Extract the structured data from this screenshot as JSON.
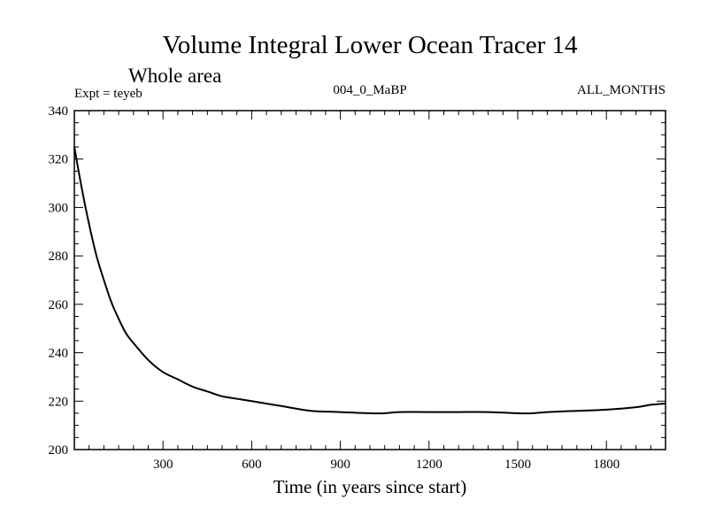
{
  "header": {
    "title": "Volume Integral Lower Ocean Tracer 14",
    "subtitle": "Whole area",
    "expt_label": "Expt = teyeb",
    "run_label": "004_0_MaBP",
    "months_label": "ALL_MONTHS"
  },
  "chart_data": {
    "type": "line",
    "title": "Volume Integral Lower Ocean Tracer 14",
    "subtitle": "Whole area",
    "xlabel": "Time (in years since start)",
    "ylabel": "",
    "xlim": [
      0,
      2000
    ],
    "ylim": [
      200,
      340
    ],
    "xticks": [
      300,
      600,
      900,
      1200,
      1500,
      1800
    ],
    "xtick_labels": [
      "300",
      "600",
      "900",
      "1200",
      "1500",
      "1800"
    ],
    "yticks": [
      200,
      220,
      240,
      260,
      280,
      300,
      320,
      340
    ],
    "ytick_labels": [
      "200",
      "220",
      "240",
      "260",
      "280",
      "300",
      "320",
      "340"
    ],
    "grid": false,
    "series": [
      {
        "name": "teyeb",
        "color": "#000000",
        "x": [
          0,
          25,
          50,
          75,
          100,
          125,
          150,
          175,
          200,
          250,
          300,
          350,
          400,
          450,
          500,
          550,
          600,
          700,
          800,
          900,
          1000,
          1050,
          1100,
          1200,
          1300,
          1400,
          1500,
          1550,
          1600,
          1700,
          1800,
          1900,
          1950,
          2000
        ],
        "y": [
          325,
          308,
          293,
          280,
          270,
          261,
          254,
          248,
          244,
          237,
          232,
          229,
          226,
          224,
          222,
          221,
          220,
          218,
          216,
          215.5,
          215,
          215,
          215.5,
          215.5,
          215.5,
          215.5,
          215,
          215,
          215.5,
          216,
          216.5,
          217.5,
          218.5,
          219
        ]
      }
    ]
  }
}
